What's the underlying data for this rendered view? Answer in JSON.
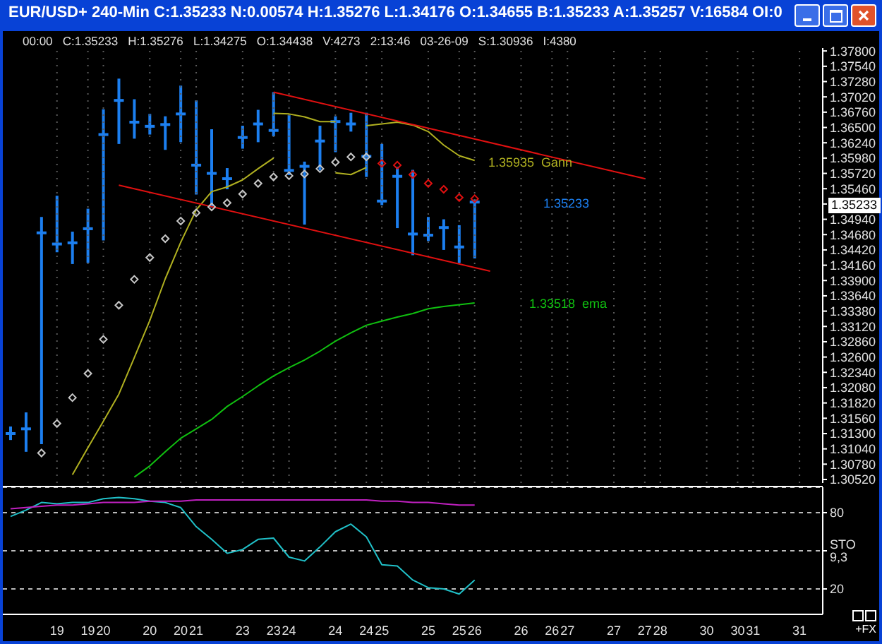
{
  "chart_data": [
    {
      "type": "candlestick",
      "title": "EUR/USD+ 240-Min C:1.35233 N:0.00574 H:1.35276 L:1.34176 O:1.34655 B:1.35233 A:1.35257 V:16584 OI:0",
      "subtitle": "00:00   C:1.35233   H:1.35276   L:1.34275   O:1.34438   V:4273   2:13:46   03-26-09   S:1.30936   I:4380",
      "categories": [
        null,
        null,
        null,
        "19",
        null,
        "19",
        "20",
        null,
        null,
        "20",
        null,
        "20",
        "21",
        null,
        null,
        "23",
        null,
        "23",
        "24",
        null,
        null,
        "24",
        null,
        "24",
        "25",
        null,
        null,
        "25",
        null,
        "25",
        "26",
        null,
        null,
        "26",
        null,
        "26",
        "27",
        null,
        null,
        "27",
        null,
        "27",
        "28",
        null,
        null,
        "30",
        null,
        "30",
        "31",
        null,
        null,
        "31",
        null
      ],
      "color": "#1c7ff0",
      "ohlc": [
        [
          1.313,
          1.3142,
          1.3119,
          1.313
        ],
        [
          1.3138,
          1.3166,
          1.3099,
          1.3138
        ],
        [
          1.3471,
          1.3498,
          1.3112,
          1.3471
        ],
        [
          1.3452,
          1.3534,
          1.3438,
          1.3452
        ],
        [
          1.3454,
          1.3473,
          1.3418,
          1.3454
        ],
        [
          1.3478,
          1.3512,
          1.342,
          1.3478
        ],
        [
          1.3638,
          1.3681,
          1.3458,
          1.3638
        ],
        [
          1.3696,
          1.3733,
          1.3622,
          1.3696
        ],
        [
          1.3659,
          1.3698,
          1.3631,
          1.3659
        ],
        [
          1.3652,
          1.3673,
          1.3638,
          1.3652
        ],
        [
          1.3655,
          1.3669,
          1.3612,
          1.3655
        ],
        [
          1.3673,
          1.3721,
          1.3625,
          1.3673
        ],
        [
          1.3586,
          1.3696,
          1.3536,
          1.3586
        ],
        [
          1.3572,
          1.3647,
          1.3514,
          1.3572
        ],
        [
          1.3563,
          1.3581,
          1.3545,
          1.3563
        ],
        [
          1.3633,
          1.3653,
          1.3614,
          1.3633
        ],
        [
          1.3656,
          1.368,
          1.3625,
          1.3656
        ],
        [
          1.3645,
          1.371,
          1.3635,
          1.3645
        ],
        [
          1.3577,
          1.3671,
          1.3569,
          1.3577
        ],
        [
          1.3584,
          1.3592,
          1.3485,
          1.3584
        ],
        [
          1.3627,
          1.3653,
          1.3577,
          1.3627
        ],
        [
          1.366,
          1.3669,
          1.3608,
          1.366
        ],
        [
          1.3656,
          1.3675,
          1.3643,
          1.3656
        ],
        [
          1.3601,
          1.3675,
          1.3566,
          1.3601
        ],
        [
          1.3525,
          1.3622,
          1.3518,
          1.3525
        ],
        [
          1.3567,
          1.3583,
          1.3479,
          1.3567
        ],
        [
          1.3469,
          1.3578,
          1.3433,
          1.3469
        ],
        [
          1.3467,
          1.3498,
          1.3457,
          1.3467
        ],
        [
          1.348,
          1.3494,
          1.3442,
          1.348
        ],
        [
          1.3447,
          1.3484,
          1.342,
          1.3447
        ],
        [
          1.35233,
          1.35276,
          1.34275,
          1.35233
        ],
        null,
        null,
        null,
        null,
        null,
        null,
        null,
        null,
        null,
        null,
        null,
        null,
        null,
        null,
        null,
        null,
        null,
        null,
        null,
        null,
        null,
        null
      ],
      "series": [
        {
          "type": "scatter",
          "marker": "diamond",
          "color": "#c8c8c8",
          "values": [
            null,
            null,
            1.3097,
            1.3147,
            1.3191,
            1.3232,
            1.329,
            1.3348,
            1.3392,
            1.3429,
            1.3461,
            1.3491,
            1.3505,
            1.3515,
            1.3522,
            1.3537,
            1.3555,
            1.3566,
            1.3568,
            1.3571,
            1.358,
            1.3591,
            1.36,
            1.36,
            null,
            null,
            null,
            null,
            null,
            null,
            null,
            null,
            null,
            null,
            null,
            null,
            null,
            null,
            null,
            null,
            null,
            null,
            null,
            null,
            null,
            null,
            null,
            null,
            null,
            null,
            null,
            null,
            null
          ]
        },
        {
          "type": "scatter",
          "marker": "diamond",
          "color": "#e01010",
          "values": [
            null,
            null,
            null,
            null,
            null,
            null,
            null,
            null,
            null,
            null,
            null,
            null,
            null,
            null,
            null,
            null,
            null,
            null,
            null,
            null,
            null,
            null,
            null,
            null,
            1.3589,
            1.3586,
            1.357,
            1.3555,
            1.3545,
            1.3531,
            1.3529,
            null,
            null,
            null,
            null,
            null,
            null,
            null,
            null,
            null,
            null,
            null,
            null,
            null,
            null,
            null,
            null,
            null,
            null,
            null,
            null,
            null,
            null
          ]
        },
        {
          "type": "line",
          "color": "#b0b020",
          "values": [
            null,
            null,
            null,
            null,
            1.306,
            1.3106,
            1.3151,
            1.3197,
            1.3259,
            1.3322,
            1.3393,
            1.3455,
            1.351,
            1.3541,
            1.3549,
            1.3561,
            1.358,
            1.3598,
            null,
            null,
            null,
            null,
            null,
            null,
            null,
            null,
            null,
            null,
            null,
            null,
            null,
            null,
            null,
            null,
            null,
            null,
            null,
            null,
            null,
            null,
            null,
            null,
            null,
            null,
            null,
            null,
            null,
            null,
            null,
            null,
            null,
            null,
            null
          ]
        },
        {
          "type": "line",
          "color": "#b0b020",
          "values": [
            null,
            null,
            null,
            null,
            null,
            null,
            null,
            null,
            null,
            null,
            null,
            null,
            null,
            null,
            null,
            null,
            null,
            1.3674,
            1.3673,
            1.3668,
            1.366,
            1.366,
            null,
            null,
            null,
            null,
            null,
            null,
            null,
            null,
            null,
            null,
            null,
            null,
            null,
            null,
            null,
            null,
            null,
            null,
            null,
            null,
            null,
            null,
            null,
            null,
            null,
            null,
            null,
            null,
            null,
            null,
            null
          ]
        },
        {
          "type": "line",
          "color": "#b0b020",
          "values": [
            null,
            null,
            null,
            null,
            null,
            null,
            null,
            null,
            null,
            null,
            null,
            null,
            null,
            null,
            null,
            null,
            null,
            null,
            null,
            null,
            null,
            1.3573,
            1.357,
            1.3582,
            null,
            null,
            null,
            null,
            null,
            null,
            null,
            null,
            null,
            null,
            null,
            null,
            null,
            null,
            null,
            null,
            null,
            null,
            null,
            null,
            null,
            null,
            null,
            null,
            null,
            null,
            null,
            null,
            null
          ]
        },
        {
          "type": "line",
          "color": "#b0b020",
          "values": [
            null,
            null,
            null,
            null,
            null,
            null,
            null,
            null,
            null,
            null,
            null,
            null,
            null,
            null,
            null,
            null,
            null,
            null,
            null,
            null,
            null,
            null,
            null,
            1.3653,
            1.3656,
            1.3659,
            1.3654,
            1.3643,
            1.362,
            1.3602,
            1.3594,
            null,
            null,
            null,
            null,
            null,
            null,
            null,
            null,
            null,
            null,
            null,
            null,
            null,
            null,
            null,
            null,
            null,
            null,
            null,
            null,
            null,
            null
          ]
        },
        {
          "type": "line",
          "color": "#10c010",
          "values": [
            null,
            null,
            null,
            null,
            null,
            null,
            null,
            null,
            1.3056,
            1.3075,
            1.3099,
            1.3122,
            1.3138,
            1.3154,
            1.3176,
            1.3193,
            1.3211,
            1.3228,
            1.3242,
            1.3255,
            1.327,
            1.3287,
            1.3301,
            1.3314,
            1.3321,
            1.3328,
            1.3334,
            1.3342,
            1.3346,
            1.3349,
            1.3352,
            null,
            null,
            null,
            null,
            null,
            null,
            null,
            null,
            null,
            null,
            null,
            null,
            null,
            null,
            null,
            null,
            null,
            null,
            null,
            null,
            null,
            null
          ]
        },
        {
          "type": "line",
          "color": "#e01010",
          "values": [
            null,
            null,
            null,
            null,
            null,
            null,
            null,
            null,
            null,
            null,
            null,
            null,
            null,
            null,
            null,
            null,
            null,
            1.371,
            null,
            null,
            null,
            null,
            null,
            null,
            null,
            null,
            null,
            null,
            null,
            null,
            null,
            null,
            null,
            null,
            null,
            null,
            null,
            null,
            null,
            null,
            null,
            1.3563,
            null,
            null,
            null,
            null,
            null,
            null,
            null,
            null,
            null,
            null,
            null
          ]
        },
        {
          "type": "line",
          "color": "#e01010",
          "values": [
            null,
            null,
            null,
            null,
            null,
            null,
            null,
            1.3552,
            null,
            null,
            null,
            null,
            null,
            null,
            null,
            null,
            null,
            null,
            null,
            null,
            null,
            null,
            null,
            null,
            null,
            null,
            null,
            null,
            null,
            null,
            null,
            1.3406,
            null,
            null,
            null,
            null,
            null,
            null,
            null,
            null,
            null,
            null,
            null,
            null,
            null,
            null,
            null,
            null,
            null,
            null,
            null,
            null,
            null
          ]
        }
      ],
      "ylim": [
        1.3046,
        1.3785
      ],
      "yticks": [
        {
          "value": 1.3052,
          "label": "1.30520"
        },
        {
          "value": 1.3078,
          "label": "1.30780"
        },
        {
          "value": 1.3104,
          "label": "1.31040"
        },
        {
          "value": 1.313,
          "label": "1.31300"
        },
        {
          "value": 1.3156,
          "label": "1.31560"
        },
        {
          "value": 1.3182,
          "label": "1.31820"
        },
        {
          "value": 1.3208,
          "label": "1.32080"
        },
        {
          "value": 1.3234,
          "label": "1.32340"
        },
        {
          "value": 1.326,
          "label": "1.32600"
        },
        {
          "value": 1.3286,
          "label": "1.32860"
        },
        {
          "value": 1.3312,
          "label": "1.33120"
        },
        {
          "value": 1.3338,
          "label": "1.33380"
        },
        {
          "value": 1.3364,
          "label": "1.33640"
        },
        {
          "value": 1.339,
          "label": "1.33900"
        },
        {
          "value": 1.3416,
          "label": "1.34160"
        },
        {
          "value": 1.3442,
          "label": "1.34420"
        },
        {
          "value": 1.3468,
          "label": "1.34680"
        },
        {
          "value": 1.3494,
          "label": "1.34940"
        },
        {
          "value": 1.352,
          "label": null
        },
        {
          "value": 1.3546,
          "label": "1.35460"
        },
        {
          "value": 1.3572,
          "label": "1.35720"
        },
        {
          "value": 1.3598,
          "label": "1.35980"
        },
        {
          "value": 1.3624,
          "label": "1.36240"
        },
        {
          "value": 1.365,
          "label": "1.36500"
        },
        {
          "value": 1.3676,
          "label": "1.36760"
        },
        {
          "value": 1.3702,
          "label": "1.37020"
        },
        {
          "value": 1.3728,
          "label": "1.37280"
        },
        {
          "value": 1.3754,
          "label": "1.37540"
        },
        {
          "value": 1.378,
          "label": "1.37800"
        }
      ],
      "tick_labels": "y",
      "grid": "x",
      "annotations": [
        "1.35935  Gann",
        "1.33518  ema",
        "1.35233",
        "1.35233"
      ]
    },
    {
      "type": "line",
      "categories": [
        null,
        null,
        null,
        "19",
        null,
        "19",
        "20",
        null,
        null,
        "20",
        null,
        "20",
        "21",
        null,
        null,
        "23",
        null,
        "23",
        "24",
        null,
        null,
        "24",
        null,
        "24",
        "25",
        null,
        null,
        "25",
        null,
        "25",
        "26",
        null,
        null,
        "26",
        null,
        "26",
        "27",
        null,
        null,
        "27",
        null,
        "27",
        "28",
        null,
        null,
        "30",
        null,
        "30",
        "31",
        null,
        null,
        "31",
        null
      ],
      "series": [
        {
          "color": "#20c0c8",
          "values": [
            77,
            82,
            88,
            87,
            88,
            88,
            91,
            92,
            91,
            89,
            88,
            84,
            69,
            59,
            48,
            51,
            59,
            60,
            45,
            42,
            53,
            65,
            71,
            61,
            39,
            38,
            27,
            21,
            20,
            16,
            27,
            null,
            null,
            null,
            null,
            null,
            null,
            null,
            null,
            null,
            null,
            null,
            null,
            null,
            null,
            null,
            null,
            null,
            null,
            null,
            null,
            null,
            null
          ]
        },
        {
          "color": "#c020c0",
          "values": [
            83,
            84,
            85,
            86,
            86,
            87,
            88,
            88,
            88,
            89,
            89,
            89,
            90,
            90,
            90,
            90,
            90,
            90,
            90,
            90,
            90,
            90,
            90,
            90,
            89,
            89,
            88,
            88,
            87,
            86,
            86,
            null,
            null,
            null,
            null,
            null,
            null,
            null,
            null,
            null,
            null,
            null,
            null,
            null,
            null,
            null,
            null,
            null,
            null,
            null,
            null,
            null,
            null
          ]
        }
      ],
      "ylim": [
        0,
        100
      ],
      "yticks": [
        20,
        {
          "value": 50,
          "label": "STO 9,3"
        },
        80
      ],
      "grid": "y",
      "annotations": [
        "+FX"
      ]
    }
  ]
}
